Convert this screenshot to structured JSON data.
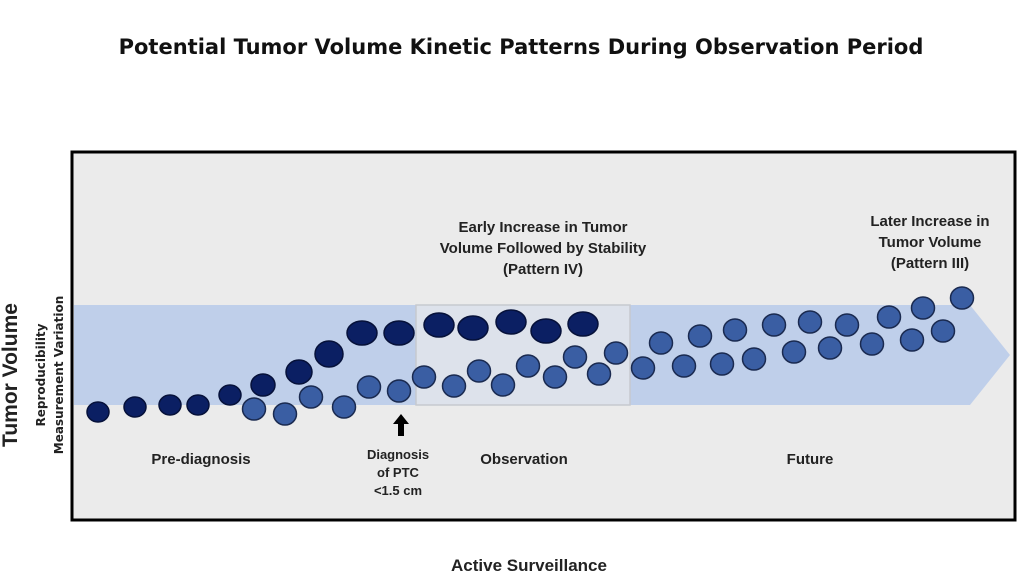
{
  "title": "Potential Tumor Volume Kinetic Patterns During Observation Period",
  "y_axis": {
    "label": "Tumor Volume",
    "sub_label_1": "Reproducibility",
    "sub_label_2": "Measurement Variation"
  },
  "x_axis": {
    "label": "Active Surveillance"
  },
  "annotations": {
    "pattern_iv": [
      "Early Increase in Tumor",
      "Volume Followed by Stability",
      "(Pattern IV)"
    ],
    "pattern_iii": [
      "Later Increase in",
      "Tumor Volume",
      "(Pattern III)"
    ],
    "diagnosis": [
      "Diagnosis",
      "of PTC",
      "<1.5 cm"
    ]
  },
  "phases": {
    "pre_diagnosis": "Pre-diagnosis",
    "observation": "Observation",
    "future": "Future"
  },
  "colors": {
    "pattern_iv_dots": "#0b1f63",
    "pattern_iii_dots": "#3a5ea3",
    "band": "#bfcfea",
    "observation_box": "#dde2eb",
    "frame_bg": "#ebebeb"
  }
}
